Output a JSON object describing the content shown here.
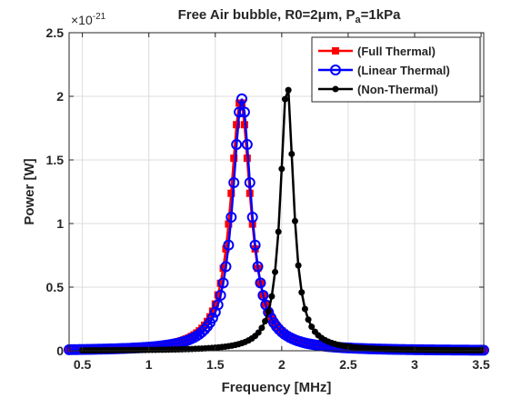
{
  "chart_data": {
    "type": "line",
    "title": "Free Air bubble, R0=2",
    "title_mu": "μ",
    "title_m": "m, P",
    "title_sub": "a",
    "title_end": "=1kPa",
    "xlabel": "Frequency [MHz]",
    "ylabel": "Power [W]",
    "xlim": [
      0.4,
      3.52
    ],
    "ylim": [
      0,
      2.5
    ],
    "xticks": [
      "0.5",
      "1",
      "1.5",
      "2",
      "2.5",
      "3",
      "3.5"
    ],
    "xtick_values": [
      0.5,
      1,
      1.5,
      2,
      2.5,
      3,
      3.5
    ],
    "yticks": [
      "0",
      "0.5",
      "1",
      "1.5",
      "2",
      "2.5"
    ],
    "ytick_values": [
      0,
      0.5,
      1,
      1.5,
      2,
      2.5
    ],
    "exponent_base": "×10",
    "exponent_power": "-21",
    "grid": true,
    "legend_position": "top-right",
    "series": [
      {
        "name": "(Full Thermal)",
        "color": "#ff0000",
        "marker": "square",
        "f0": 1.69,
        "gamma": 0.091,
        "peak": 1.97,
        "x_start": 0.4,
        "x_end": 3.52,
        "step": 0.02,
        "floor": 0.0
      },
      {
        "name": "(Linear Thermal)",
        "color": "#0000ff",
        "marker": "circle",
        "f0": 1.7,
        "gamma": 0.085,
        "peak": 1.98,
        "x_start": 0.4,
        "x_end": 3.52,
        "step": 0.02,
        "floor": 0.0
      },
      {
        "name": "(Non-Thermal)",
        "color": "#000000",
        "marker": "dot",
        "f0": 2.04,
        "gamma": 0.058,
        "peak": 2.11,
        "x_start": 0.5,
        "x_end": 3.5,
        "step": 0.025,
        "floor": 0.0
      }
    ]
  }
}
